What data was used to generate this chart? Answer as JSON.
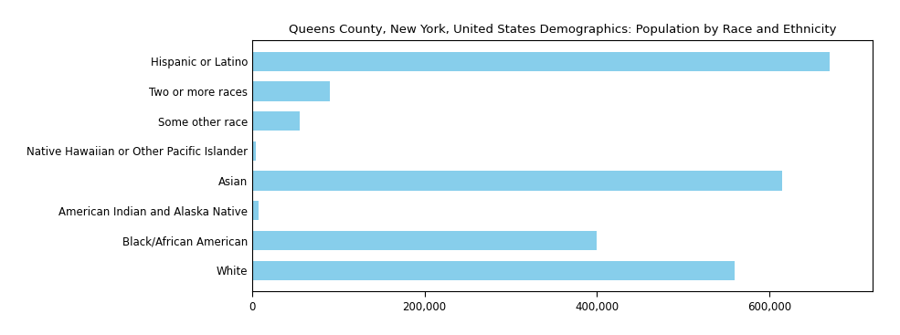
{
  "title": "Queens County, New York, United States Demographics: Population by Race and Ethnicity",
  "categories": [
    "White",
    "Black/African American",
    "American Indian and Alaska Native",
    "Asian",
    "Native Hawaiian or Other Pacific Islander",
    "Some other race",
    "Two or more races",
    "Hispanic or Latino"
  ],
  "values": [
    560000,
    400000,
    8000,
    615000,
    4000,
    55000,
    90000,
    670000
  ],
  "bar_color": "#87CEEB",
  "xlim": [
    0,
    720000
  ],
  "xticks": [
    0,
    200000,
    400000,
    600000
  ],
  "xticklabels": [
    "0",
    "200,000",
    "400,000",
    "600,000"
  ],
  "background_color": "#ffffff",
  "title_fontsize": 9.5,
  "label_fontsize": 8.5,
  "tick_fontsize": 8.5,
  "bar_height": 0.65
}
